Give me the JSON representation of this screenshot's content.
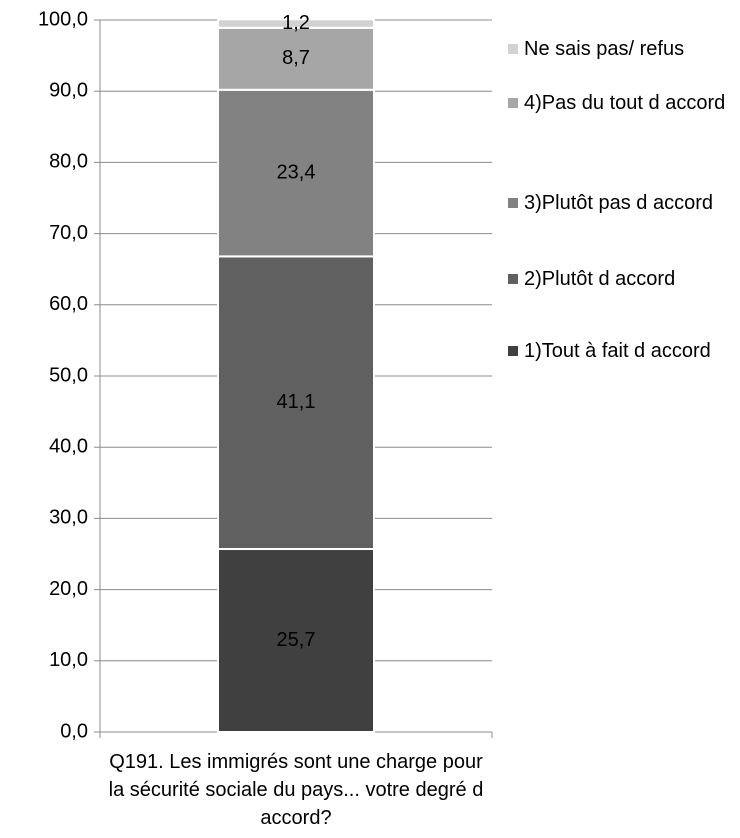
{
  "chart_data": {
    "type": "stacked_bar",
    "categories": [
      "Q191. Les immigrés sont une charge pour la sécurité sociale du pays... votre degré d accord?"
    ],
    "series": [
      {
        "name": "1)Tout à fait d accord",
        "color": "#404040",
        "values": [
          25.7
        ],
        "value_labels": [
          "25,7"
        ]
      },
      {
        "name": "2)Plutôt d accord",
        "color": "#606060",
        "values": [
          41.1
        ],
        "value_labels": [
          "41,1"
        ]
      },
      {
        "name": "3)Plutôt pas d accord",
        "color": "#828282",
        "values": [
          23.4
        ],
        "value_labels": [
          "23,4"
        ]
      },
      {
        "name": "4)Pas du tout d accord",
        "color": "#a6a6a6",
        "values": [
          8.7
        ],
        "value_labels": [
          "8,7"
        ]
      },
      {
        "name": "Ne sais pas/ refus",
        "color": "#d2d2d2",
        "values": [
          1.2
        ],
        "value_labels": [
          "1,2"
        ]
      }
    ],
    "ylim": [
      0,
      100
    ],
    "yticks": [
      {
        "value": 0,
        "label": "0,0"
      },
      {
        "value": 10,
        "label": "10,0"
      },
      {
        "value": 20,
        "label": "20,0"
      },
      {
        "value": 30,
        "label": "30,0"
      },
      {
        "value": 40,
        "label": "40,0"
      },
      {
        "value": 50,
        "label": "50,0"
      },
      {
        "value": 60,
        "label": "60,0"
      },
      {
        "value": 70,
        "label": "70,0"
      },
      {
        "value": 80,
        "label": "80,0"
      },
      {
        "value": 90,
        "label": "90,0"
      },
      {
        "value": 100,
        "label": "100,0"
      }
    ],
    "grid": true,
    "legend": "right"
  }
}
